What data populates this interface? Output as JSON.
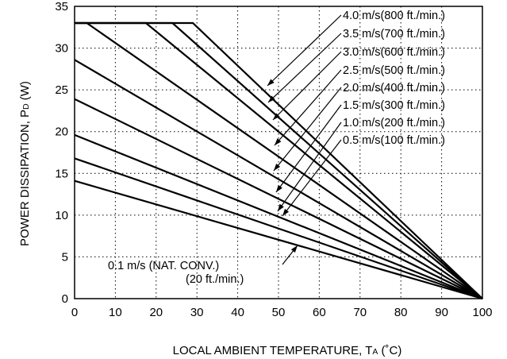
{
  "chart_data": {
    "type": "line",
    "xlabel": "LOCAL AMBIENT TEMPERATURE, TA (˚C)",
    "ylabel": "POWER DISSIPATION, PD (W)",
    "xlim": [
      0,
      100
    ],
    "ylim": [
      0,
      35
    ],
    "x_ticks": [
      0,
      10,
      20,
      30,
      40,
      50,
      60,
      70,
      80,
      90,
      100
    ],
    "y_ticks": [
      0,
      5,
      10,
      15,
      20,
      25,
      30,
      35
    ],
    "grid": true,
    "series": [
      {
        "name": "4.0 m/s(800 ft./min.)",
        "x": [
          0,
          29,
          100
        ],
        "y": [
          33,
          33,
          0
        ]
      },
      {
        "name": "3.5 m/s(700 ft./min.)",
        "x": [
          0,
          24,
          100
        ],
        "y": [
          33,
          33,
          0
        ]
      },
      {
        "name": "3.0 m/s(600 ft./min.)",
        "x": [
          0,
          17.5,
          100
        ],
        "y": [
          33,
          33,
          0
        ]
      },
      {
        "name": "2.5 m/s(500 ft./min.)",
        "x": [
          0,
          3,
          100
        ],
        "y": [
          33,
          33,
          0
        ]
      },
      {
        "name": "2.0 m/s(400 ft./min.)",
        "x": [
          0,
          100
        ],
        "y": [
          28.6,
          0
        ]
      },
      {
        "name": "1.5 m/s(300 ft./min.)",
        "x": [
          0,
          100
        ],
        "y": [
          23.9,
          0
        ]
      },
      {
        "name": "1.0 m/s(200 ft./min.)",
        "x": [
          0,
          100
        ],
        "y": [
          19.6,
          0
        ]
      },
      {
        "name": "0.5 m/s(100 ft./min.)",
        "x": [
          0,
          100
        ],
        "y": [
          16.8,
          0
        ]
      },
      {
        "name": "0.1 m/s (NAT. CONV.)\n(20 ft./min.)",
        "x": [
          0,
          100
        ],
        "y": [
          14.1,
          0
        ]
      }
    ]
  }
}
